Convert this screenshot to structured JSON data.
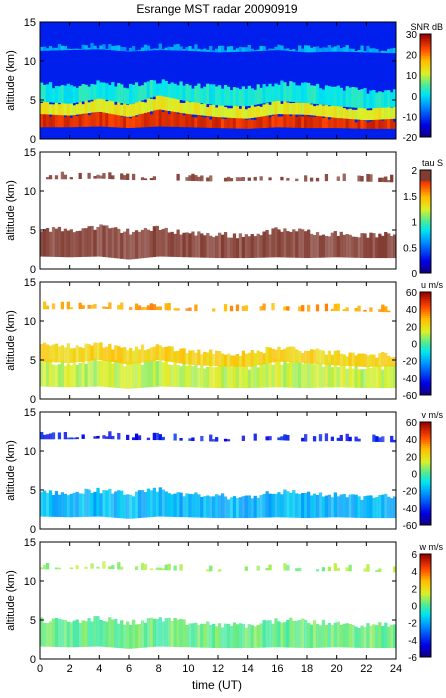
{
  "title": "Esrange MST radar 20090919",
  "xlabel": "time (UT)",
  "chart_data": [
    {
      "type": "heatmap",
      "title": "Esrange MST radar 20090919",
      "ylabel": "altitude (km)",
      "quantity": "SNR",
      "unit": "dB",
      "colorbar_label": "SNR dB",
      "colorbar_ticks": [
        30,
        20,
        10,
        0,
        -10,
        -20
      ],
      "clim": [
        -20,
        30
      ],
      "x_ticks": [
        0,
        2,
        4,
        6,
        8,
        10,
        12,
        14,
        16,
        18,
        20,
        22,
        24
      ],
      "y_ticks": [
        0,
        5,
        10,
        15
      ],
      "xlim": [
        0,
        24
      ],
      "ylim": [
        0,
        15
      ],
      "layers": [
        {
          "x": [
            0,
            2,
            4,
            6,
            8,
            10,
            12,
            14,
            16,
            18,
            20,
            22,
            24
          ],
          "top": [
            3.2,
            3.0,
            3.5,
            2.8,
            3.8,
            3.2,
            2.8,
            2.6,
            3.2,
            3.1,
            2.7,
            2.4,
            2.6
          ],
          "bottom": [
            1.5,
            1.5,
            1.6,
            1.4,
            1.6,
            1.5,
            1.4,
            1.3,
            1.5,
            1.4,
            1.4,
            1.3,
            1.3
          ],
          "value": 25
        },
        {
          "x": [
            0,
            2,
            4,
            6,
            8,
            10,
            12,
            14,
            16,
            18,
            20,
            22,
            24
          ],
          "top": [
            4.8,
            4.5,
            5.2,
            4.4,
            5.6,
            4.8,
            4.3,
            4.2,
            4.9,
            4.6,
            4.2,
            3.9,
            4.1
          ],
          "bottom": [
            3.2,
            3.0,
            3.5,
            2.8,
            3.8,
            3.2,
            2.8,
            2.6,
            3.2,
            3.1,
            2.7,
            2.4,
            2.6
          ],
          "value": 12
        },
        {
          "x": [
            0,
            2,
            4,
            6,
            8,
            10,
            12,
            14,
            16,
            18,
            20,
            22,
            24
          ],
          "top": [
            7.0,
            6.8,
            7.2,
            6.8,
            7.4,
            6.9,
            6.6,
            6.4,
            7.2,
            6.9,
            6.5,
            6.2,
            6.4
          ],
          "bottom": [
            4.8,
            4.5,
            5.2,
            4.4,
            5.6,
            4.8,
            4.3,
            4.2,
            4.9,
            4.6,
            4.2,
            3.9,
            4.1
          ],
          "value": 2
        },
        {
          "x": [
            0,
            2,
            4,
            6,
            8,
            10,
            12,
            14,
            16,
            18,
            20,
            22,
            24
          ],
          "top": [
            11.8,
            11.9,
            12.0,
            11.7,
            11.9,
            11.8,
            11.6,
            11.7,
            11.9,
            11.6,
            11.7,
            11.6,
            11.5
          ],
          "bottom": [
            11.3,
            11.4,
            11.5,
            11.2,
            11.4,
            11.3,
            11.1,
            11.2,
            11.4,
            11.1,
            11.2,
            11.1,
            11.0
          ],
          "value": -3
        }
      ],
      "background_value": -12
    },
    {
      "type": "heatmap",
      "ylabel": "altitude (km)",
      "quantity": "tau",
      "unit": "S",
      "colorbar_label": "tau S",
      "colorbar_ticks": [
        2,
        1.5,
        1,
        0.5,
        0
      ],
      "clim": [
        0,
        2
      ],
      "x_ticks": [
        0,
        2,
        4,
        6,
        8,
        10,
        12,
        14,
        16,
        18,
        20,
        22,
        24
      ],
      "y_ticks": [
        0,
        5,
        10,
        15
      ],
      "xlim": [
        0,
        24
      ],
      "ylim": [
        0,
        15
      ],
      "layers": [
        {
          "x": [
            0,
            2,
            4,
            6,
            8,
            10,
            12,
            14,
            16,
            18,
            20,
            22,
            24
          ],
          "top": [
            5.2,
            5.0,
            5.4,
            4.8,
            5.2,
            4.6,
            4.4,
            4.3,
            5.0,
            4.8,
            4.5,
            4.3,
            4.4
          ],
          "bottom": [
            1.6,
            1.5,
            1.6,
            1.2,
            1.6,
            1.5,
            1.4,
            1.4,
            1.5,
            1.4,
            1.5,
            1.4,
            1.4
          ],
          "value": 1.95
        },
        {
          "x": [
            0,
            2,
            4,
            6,
            8,
            10,
            12,
            14,
            16,
            18,
            20,
            22,
            24
          ],
          "top": [
            12.1,
            12.1,
            12.2,
            12.0,
            12.0,
            11.9,
            11.8,
            11.9,
            12.0,
            11.8,
            11.9,
            11.8,
            11.7
          ],
          "bottom": [
            11.5,
            11.5,
            11.6,
            11.4,
            11.4,
            11.3,
            11.2,
            11.3,
            11.4,
            11.2,
            11.3,
            11.2,
            11.1
          ],
          "value": 1.9
        }
      ],
      "background_value": null
    },
    {
      "type": "heatmap",
      "ylabel": "altitude (km)",
      "quantity": "u",
      "unit": "m/s",
      "colorbar_label": "u m/s",
      "colorbar_ticks": [
        60,
        40,
        20,
        0,
        -20,
        -40,
        -60
      ],
      "clim": [
        -60,
        60
      ],
      "x_ticks": [
        0,
        2,
        4,
        6,
        8,
        10,
        12,
        14,
        16,
        18,
        20,
        22,
        24
      ],
      "y_ticks": [
        0,
        5,
        10,
        15
      ],
      "xlim": [
        0,
        24
      ],
      "ylim": [
        0,
        15
      ],
      "layers": [
        {
          "x": [
            0,
            2,
            4,
            6,
            8,
            10,
            12,
            14,
            16,
            18,
            20,
            22,
            24
          ],
          "top": [
            4.8,
            4.6,
            5.0,
            4.4,
            5.0,
            4.4,
            4.2,
            4.1,
            4.8,
            4.6,
            4.3,
            4.1,
            4.2
          ],
          "bottom": [
            1.6,
            1.5,
            1.6,
            1.3,
            1.6,
            1.5,
            1.4,
            1.4,
            1.5,
            1.4,
            1.5,
            1.4,
            1.4
          ],
          "value": 12
        },
        {
          "x": [
            0,
            2,
            4,
            6,
            8,
            10,
            12,
            14,
            16,
            18,
            20,
            22,
            24
          ],
          "top": [
            7.0,
            6.8,
            7.0,
            6.4,
            6.8,
            6.2,
            6.0,
            5.8,
            6.6,
            6.2,
            5.9,
            5.6,
            5.7
          ],
          "bottom": [
            4.8,
            4.6,
            5.0,
            4.4,
            5.0,
            4.4,
            4.2,
            4.1,
            4.8,
            4.6,
            4.3,
            4.1,
            4.2
          ],
          "value": 24
        },
        {
          "x": [
            0,
            2,
            4,
            6,
            8,
            10,
            12,
            14,
            16,
            18,
            20,
            22,
            24
          ],
          "top": [
            12.1,
            12.1,
            12.2,
            12.0,
            12.0,
            11.9,
            11.8,
            11.9,
            12.0,
            11.8,
            11.9,
            11.8,
            11.7
          ],
          "bottom": [
            11.5,
            11.5,
            11.6,
            11.4,
            11.4,
            11.3,
            11.2,
            11.3,
            11.4,
            11.2,
            11.3,
            11.2,
            11.1
          ],
          "value": 32
        }
      ],
      "background_value": null
    },
    {
      "type": "heatmap",
      "ylabel": "altitude (km)",
      "quantity": "v",
      "unit": "m/s",
      "colorbar_label": "v m/s",
      "colorbar_ticks": [
        60,
        40,
        20,
        0,
        -20,
        -40,
        -60
      ],
      "clim": [
        -60,
        60
      ],
      "x_ticks": [
        0,
        2,
        4,
        6,
        8,
        10,
        12,
        14,
        16,
        18,
        20,
        22,
        24
      ],
      "y_ticks": [
        0,
        5,
        10,
        15
      ],
      "xlim": [
        0,
        24
      ],
      "ylim": [
        0,
        15
      ],
      "layers": [
        {
          "x": [
            0,
            2,
            4,
            6,
            8,
            10,
            12,
            14,
            16,
            18,
            20,
            22,
            24
          ],
          "top": [
            4.8,
            4.6,
            5.0,
            4.4,
            5.0,
            4.4,
            4.2,
            4.1,
            4.8,
            4.6,
            4.3,
            4.1,
            4.2
          ],
          "bottom": [
            1.6,
            1.5,
            1.6,
            1.3,
            1.6,
            1.5,
            1.4,
            1.4,
            1.5,
            1.4,
            1.5,
            1.4,
            1.4
          ],
          "value": -18
        },
        {
          "x": [
            0,
            2,
            4,
            6,
            8,
            10,
            12,
            14,
            16,
            18,
            20,
            22,
            24
          ],
          "top": [
            12.1,
            12.1,
            12.2,
            12.0,
            12.0,
            11.9,
            11.8,
            11.9,
            12.0,
            11.8,
            11.9,
            11.8,
            11.7
          ],
          "bottom": [
            11.5,
            11.5,
            11.6,
            11.4,
            11.4,
            11.3,
            11.2,
            11.3,
            11.4,
            11.2,
            11.3,
            11.2,
            11.1
          ],
          "value": -42
        }
      ],
      "background_value": null
    },
    {
      "type": "heatmap",
      "ylabel": "altitude (km)",
      "quantity": "w",
      "unit": "m/s",
      "colorbar_label": "w m/s",
      "colorbar_ticks": [
        6,
        4,
        2,
        0,
        -2,
        -4,
        -6
      ],
      "clim": [
        -6,
        6
      ],
      "x_ticks": [
        0,
        2,
        4,
        6,
        8,
        10,
        12,
        14,
        16,
        18,
        20,
        22,
        24
      ],
      "y_ticks": [
        0,
        5,
        10,
        15
      ],
      "xlim": [
        0,
        24
      ],
      "ylim": [
        0,
        15
      ],
      "layers": [
        {
          "x": [
            0,
            2,
            4,
            6,
            8,
            10,
            12,
            14,
            16,
            18,
            20,
            22,
            24
          ],
          "top": [
            5.0,
            4.8,
            5.2,
            4.6,
            5.2,
            4.6,
            4.4,
            4.3,
            5.0,
            4.8,
            4.5,
            4.3,
            4.4
          ],
          "bottom": [
            1.6,
            1.5,
            1.6,
            1.3,
            1.6,
            1.5,
            1.4,
            1.4,
            1.5,
            1.4,
            1.5,
            1.4,
            1.4
          ],
          "value": 0.3
        },
        {
          "x": [
            0,
            2,
            4,
            6,
            8,
            10,
            12,
            14,
            16,
            18,
            20,
            22,
            24
          ],
          "top": [
            12.1,
            12.1,
            12.2,
            12.0,
            12.0,
            11.9,
            11.8,
            11.9,
            12.0,
            11.8,
            11.9,
            11.8,
            11.7
          ],
          "bottom": [
            11.5,
            11.5,
            11.6,
            11.4,
            11.4,
            11.3,
            11.2,
            11.3,
            11.4,
            11.2,
            11.3,
            11.2,
            11.1
          ],
          "value": 0.8
        }
      ],
      "background_value": null
    }
  ]
}
